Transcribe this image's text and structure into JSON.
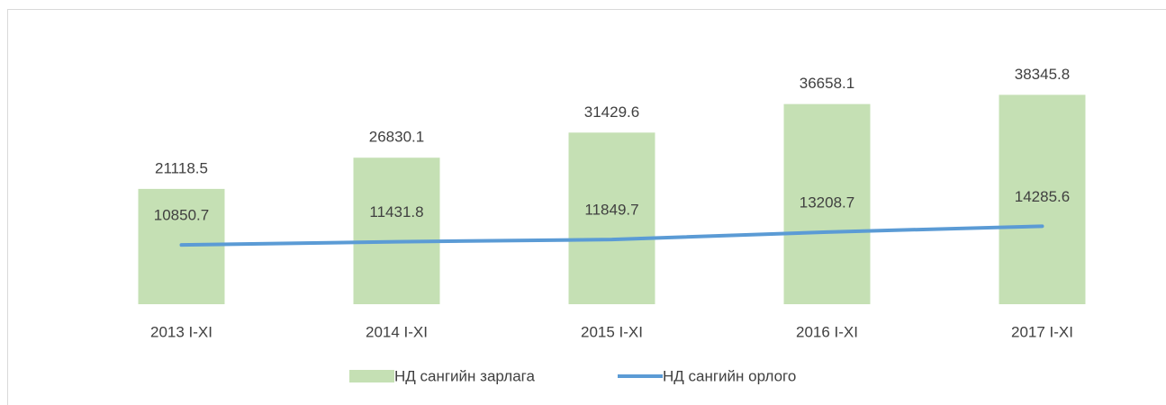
{
  "chart_data": {
    "type": "combo",
    "categories": [
      "2013 I-XI",
      "2014 I-XI",
      "2015 I-XI",
      "2016 I-XI",
      "2017 I-XI"
    ],
    "series": [
      {
        "name": "НД сангийн зарлага",
        "type": "bar",
        "color": "#c5e0b4",
        "values": [
          21118.5,
          26830.1,
          31429.6,
          36658.1,
          38345.8
        ]
      },
      {
        "name": "НД сангийн орлого",
        "type": "line",
        "color": "#5b9bd5",
        "values": [
          10850.7,
          11431.8,
          11849.7,
          13208.7,
          14285.6
        ]
      }
    ],
    "ylim": [
      0,
      45000
    ]
  }
}
